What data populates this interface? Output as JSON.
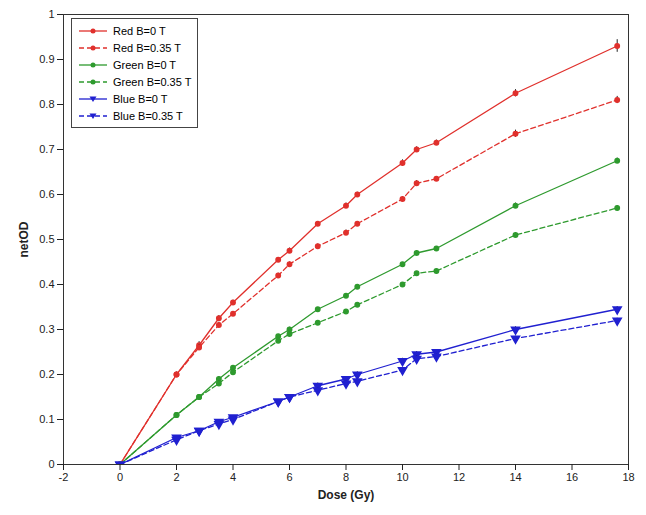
{
  "chart_data": {
    "type": "line",
    "x_label": "Dose (Gy)",
    "y_label": "netOD",
    "x": [
      0,
      2,
      2.8,
      3.5,
      4,
      5.6,
      6,
      7,
      8,
      8.4,
      10,
      10.5,
      11.2,
      14,
      17.6
    ],
    "series": [
      {
        "name": "Red B=0 T",
        "color": "#e0302c",
        "marker": "circle",
        "line_style": "solid",
        "values": [
          0,
          0.2,
          0.265,
          0.325,
          0.36,
          0.455,
          0.475,
          0.535,
          0.575,
          0.6,
          0.67,
          0.7,
          0.715,
          0.825,
          0.93
        ],
        "errors": [
          0,
          0.005,
          0.008,
          0.006,
          0.005,
          0.005,
          0.006,
          0.005,
          0.006,
          0.005,
          0.007,
          0.006,
          0.006,
          0.008,
          0.014
        ]
      },
      {
        "name": "Red B=0.35 T",
        "color": "#e0302c",
        "marker": "circle",
        "line_style": "dashed",
        "values": [
          0,
          0.2,
          0.26,
          0.31,
          0.335,
          0.42,
          0.445,
          0.485,
          0.515,
          0.535,
          0.59,
          0.625,
          0.635,
          0.735,
          0.81
        ],
        "errors": [
          0,
          0.005,
          0.006,
          0.006,
          0.005,
          0.005,
          0.005,
          0.005,
          0.006,
          0.005,
          0.005,
          0.006,
          0.005,
          0.008,
          0.008
        ]
      },
      {
        "name": "Green B=0 T",
        "color": "#2e9a2e",
        "marker": "circle",
        "line_style": "solid",
        "values": [
          0,
          0.11,
          0.15,
          0.19,
          0.215,
          0.285,
          0.3,
          0.345,
          0.375,
          0.395,
          0.445,
          0.47,
          0.48,
          0.575,
          0.675
        ],
        "errors": [
          0,
          0.004,
          0.004,
          0.005,
          0.005,
          0.004,
          0.005,
          0.004,
          0.004,
          0.005,
          0.004,
          0.005,
          0.004,
          0.006,
          0.006
        ]
      },
      {
        "name": "Green B=0.35 T",
        "color": "#2e9a2e",
        "marker": "circle",
        "line_style": "dashed",
        "values": [
          0,
          0.11,
          0.15,
          0.18,
          0.205,
          0.275,
          0.29,
          0.315,
          0.34,
          0.355,
          0.4,
          0.425,
          0.43,
          0.51,
          0.57
        ],
        "errors": [
          0,
          0.004,
          0.004,
          0.005,
          0.004,
          0.004,
          0.004,
          0.004,
          0.004,
          0.004,
          0.004,
          0.004,
          0.004,
          0.005,
          0.005
        ]
      },
      {
        "name": "Blue B=0 T",
        "color": "#2020d0",
        "marker": "triangle-down",
        "line_style": "solid",
        "values": [
          0,
          0.06,
          0.075,
          0.095,
          0.105,
          0.14,
          0.15,
          0.175,
          0.19,
          0.2,
          0.23,
          0.245,
          0.25,
          0.3,
          0.345
        ],
        "errors": [
          0,
          0.004,
          0.004,
          0.004,
          0.004,
          0.004,
          0.004,
          0.006,
          0.005,
          0.006,
          0.006,
          0.006,
          0.005,
          0.006,
          0.006
        ]
      },
      {
        "name": "Blue B=0.35 T",
        "color": "#2020d0",
        "marker": "triangle-down",
        "line_style": "dashed",
        "values": [
          0,
          0.055,
          0.075,
          0.09,
          0.1,
          0.14,
          0.15,
          0.165,
          0.18,
          0.185,
          0.21,
          0.235,
          0.24,
          0.28,
          0.32
        ],
        "errors": [
          0,
          0.004,
          0.004,
          0.004,
          0.004,
          0.004,
          0.004,
          0.005,
          0.005,
          0.005,
          0.005,
          0.006,
          0.005,
          0.005,
          0.005
        ]
      }
    ],
    "xlim": [
      -2,
      18
    ],
    "xticks": [
      -2,
      0,
      2,
      4,
      6,
      8,
      10,
      12,
      14,
      16,
      18
    ],
    "ylim": [
      0,
      1
    ],
    "yticks": [
      0,
      0.1,
      0.2,
      0.3,
      0.4,
      0.5,
      0.6,
      0.7,
      0.8,
      0.9,
      1
    ],
    "grid": false,
    "legend": "top-left"
  }
}
